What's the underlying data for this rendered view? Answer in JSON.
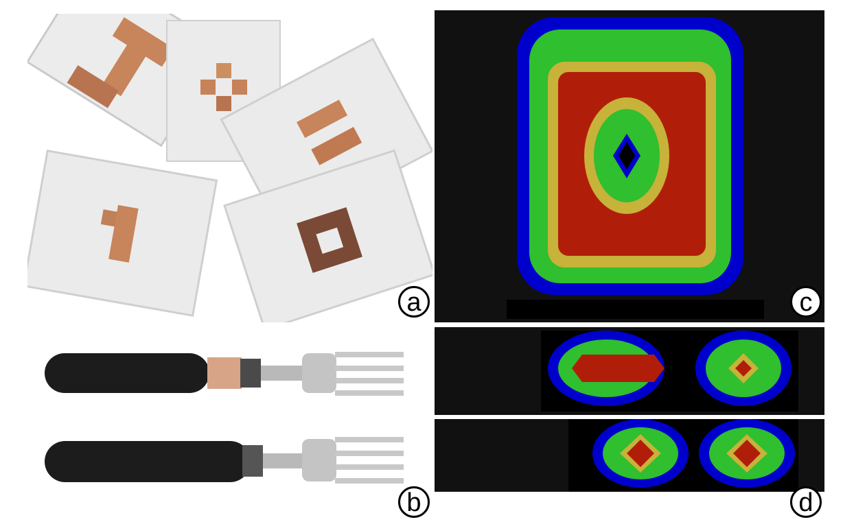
{
  "panels": {
    "a": {
      "label": "a"
    },
    "b": {
      "label": "b"
    },
    "c": {
      "label": "c"
    },
    "d": {
      "label": "d"
    }
  },
  "colors": {
    "heat_low": "#0000cc",
    "heat_mid": "#2fbf2f",
    "heat_high": "#b01e0a",
    "copper": "#c8845a",
    "board": "#e9eaea",
    "handle": "#1c1c1c"
  }
}
